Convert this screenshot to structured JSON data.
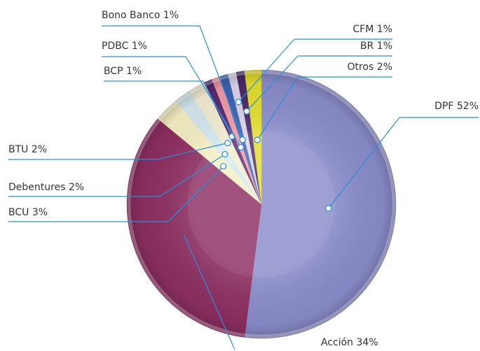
{
  "chart_data": {
    "type": "pie",
    "categories": [
      "DPF",
      "Acción",
      "BCU",
      "Debentures",
      "BTU",
      "BCP",
      "PDBC",
      "Bono Banco",
      "CFM",
      "BR",
      "Otros"
    ],
    "values": [
      52,
      34,
      3,
      2,
      2,
      1,
      1,
      1,
      1,
      1,
      2
    ],
    "value_labels": [
      "52%",
      "34%",
      "3%",
      "2%",
      "2%",
      "1%",
      "1%",
      "1%",
      "1%",
      "1%",
      "2%"
    ],
    "colors": [
      "#8b8dcc",
      "#8e2f63",
      "#f6f0c4",
      "#d6e9ef",
      "#f4efd2",
      "#5a2a70",
      "#f09aa8",
      "#3d63b2",
      "#dcd4ea",
      "#4a2a68",
      "#e4de30"
    ]
  }
}
